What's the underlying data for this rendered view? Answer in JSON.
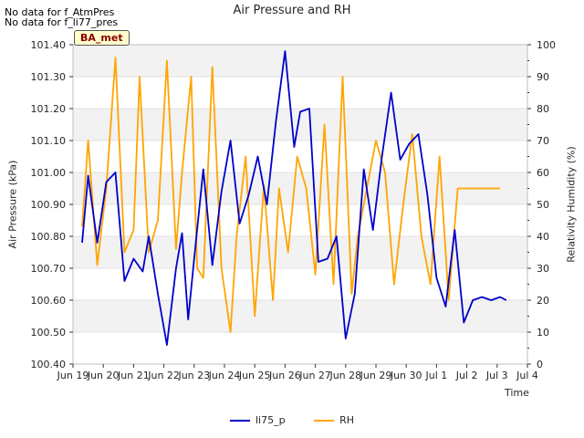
{
  "notices": [
    "No data for f_AtmPres",
    "No data for f_li77_pres"
  ],
  "badge": "BA_met",
  "chart_data": {
    "type": "line",
    "title": "Air Pressure and RH",
    "xlabel": "Time",
    "ylabel": "Air Pressure (kPa)",
    "ylabel_right": "Relativity Humidity (%)",
    "xlim": [
      "2024-06-19",
      "2024-07-04"
    ],
    "ylim": [
      100.4,
      101.4
    ],
    "ylim_right": [
      0,
      100
    ],
    "x_ticks": [
      "Jun 19",
      "Jun 20",
      "Jun 21",
      "Jun 22",
      "Jun 23",
      "Jun 24",
      "Jun 25",
      "Jun 26",
      "Jun 27",
      "Jun 28",
      "Jun 29",
      "Jun 30",
      "Jul 1",
      "Jul 2",
      "Jul 3",
      "Jul 4"
    ],
    "y_ticks": [
      "100.40",
      "100.50",
      "100.60",
      "100.70",
      "100.80",
      "100.90",
      "101.00",
      "101.10",
      "101.20",
      "101.30",
      "101.40"
    ],
    "y_ticks_right": [
      "0",
      "10",
      "20",
      "30",
      "40",
      "50",
      "60",
      "70",
      "80",
      "90",
      "100"
    ],
    "grid": true,
    "legend_position": "bottom",
    "series": [
      {
        "name": "li75_p",
        "axis": "left",
        "color": "#0000cc",
        "x": [
          0.3,
          0.5,
          0.8,
          1.1,
          1.4,
          1.7,
          2.0,
          2.3,
          2.5,
          2.8,
          3.1,
          3.4,
          3.6,
          3.8,
          4.0,
          4.3,
          4.6,
          4.9,
          5.2,
          5.5,
          5.8,
          6.1,
          6.4,
          6.7,
          7.0,
          7.3,
          7.5,
          7.8,
          8.1,
          8.4,
          8.7,
          9.0,
          9.3,
          9.6,
          9.9,
          10.2,
          10.5,
          10.8,
          11.1,
          11.4,
          11.7,
          12.0,
          12.3,
          12.6,
          12.9,
          13.2,
          13.5,
          13.8,
          14.1,
          14.3
        ],
        "y": [
          100.78,
          100.99,
          100.78,
          100.97,
          101.0,
          100.66,
          100.73,
          100.69,
          100.8,
          100.62,
          100.46,
          100.7,
          100.81,
          100.54,
          100.73,
          101.01,
          100.71,
          100.94,
          101.1,
          100.84,
          100.93,
          101.05,
          100.9,
          101.16,
          101.38,
          101.08,
          101.19,
          101.2,
          100.72,
          100.73,
          100.8,
          100.48,
          100.62,
          101.01,
          100.82,
          101.05,
          101.25,
          101.04,
          101.09,
          101.12,
          100.93,
          100.67,
          100.58,
          100.82,
          100.53,
          100.6,
          100.61,
          100.6,
          100.61,
          100.6
        ],
        "y_note": "last sample ends near Jul 3; trailing samples approximate"
      },
      {
        "name": "RH",
        "axis": "right",
        "color": "#ffa500",
        "x": [
          0.3,
          0.5,
          0.8,
          1.1,
          1.4,
          1.7,
          2.0,
          2.2,
          2.5,
          2.8,
          3.1,
          3.4,
          3.6,
          3.9,
          4.1,
          4.3,
          4.6,
          4.9,
          5.2,
          5.4,
          5.7,
          6.0,
          6.3,
          6.6,
          6.8,
          7.1,
          7.4,
          7.7,
          8.0,
          8.3,
          8.6,
          8.9,
          9.2,
          9.4,
          9.7,
          10.0,
          10.3,
          10.6,
          10.9,
          11.2,
          11.5,
          11.8,
          12.1,
          12.4,
          12.7,
          13.0,
          13.3,
          13.6,
          13.9,
          14.1
        ],
        "y": [
          43,
          70,
          31,
          55,
          96,
          35,
          42,
          90,
          35,
          45,
          95,
          36,
          60,
          90,
          30,
          27,
          93,
          30,
          10,
          40,
          65,
          15,
          56,
          20,
          55,
          35,
          65,
          55,
          28,
          75,
          25,
          90,
          22,
          40,
          55,
          70,
          60,
          25,
          50,
          72,
          40,
          25,
          65,
          20,
          55,
          55,
          55,
          55,
          55,
          55
        ],
        "y_note": "approximate readings"
      }
    ]
  }
}
